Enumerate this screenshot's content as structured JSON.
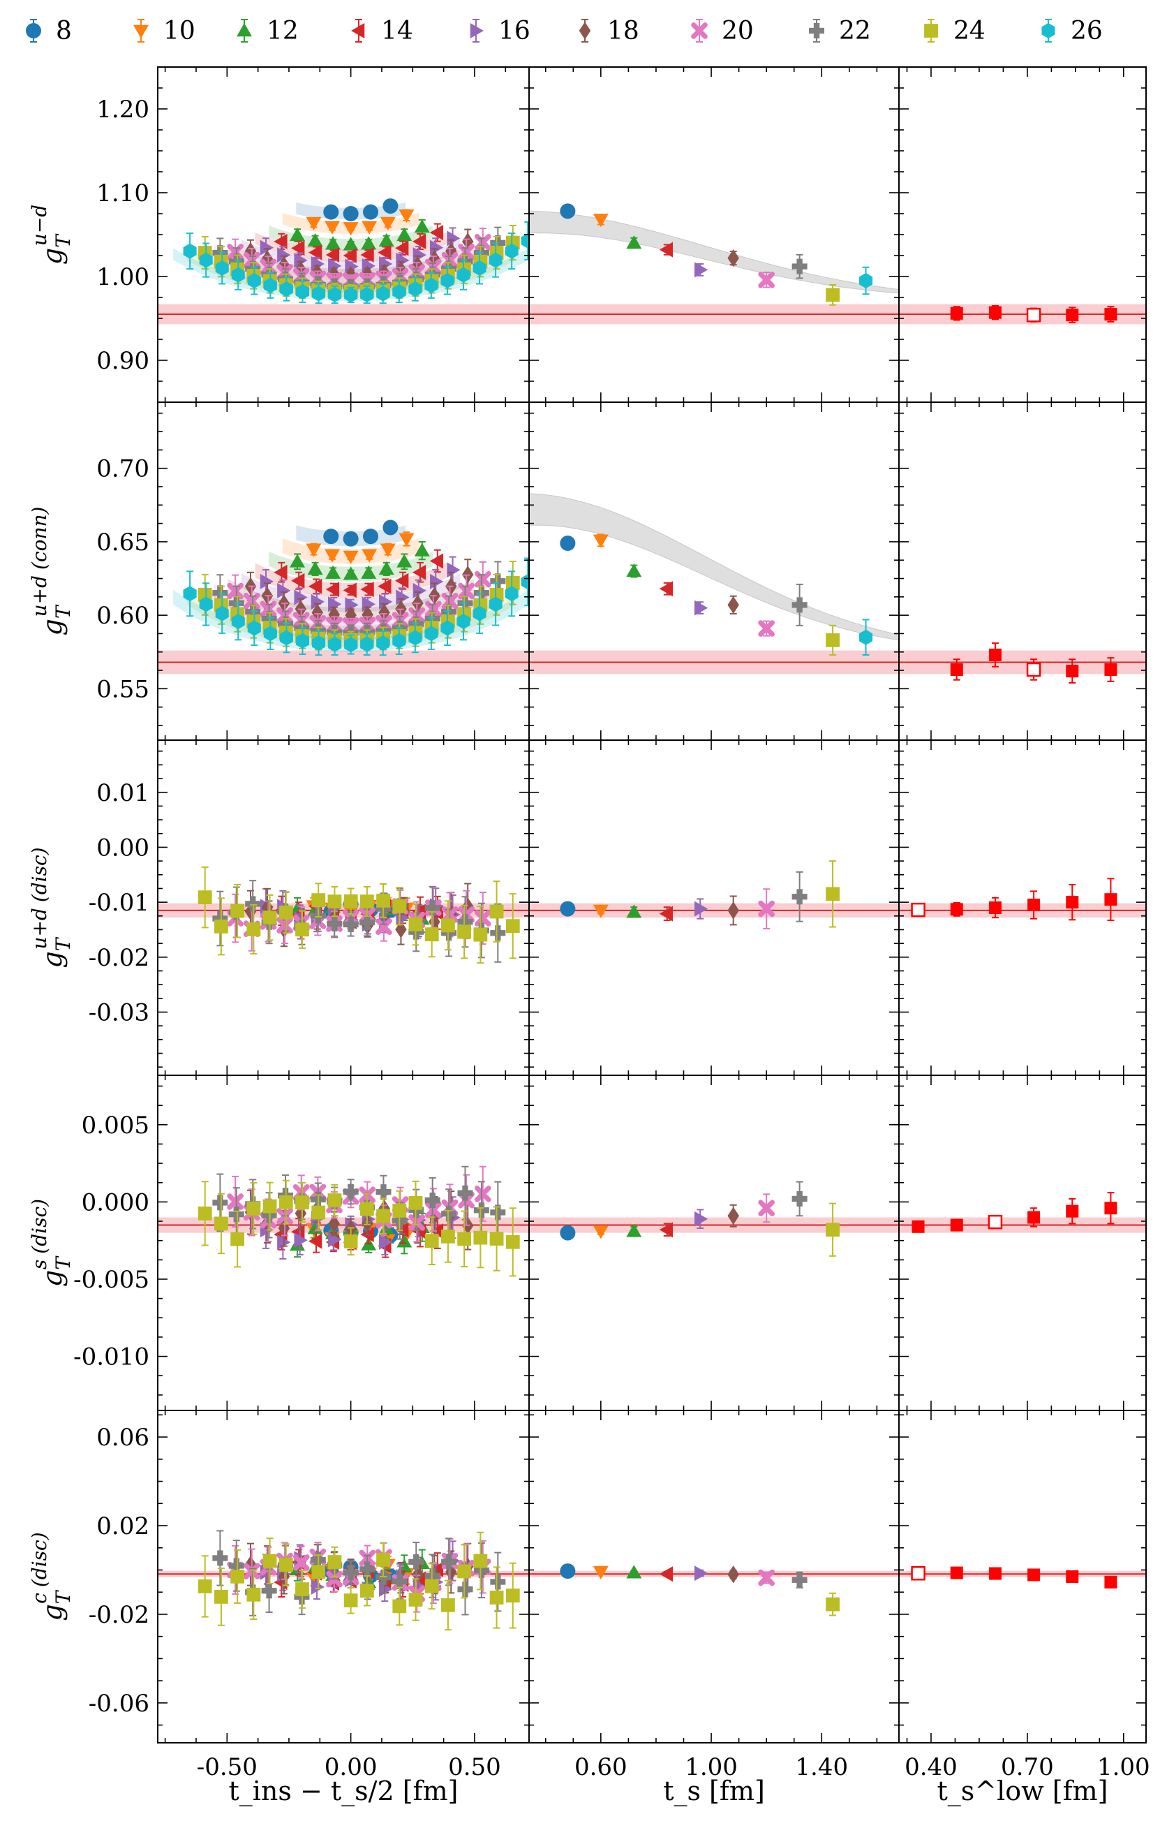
{
  "legend": [
    {
      "label": "8",
      "color": "#1f77b4",
      "marker": "circle"
    },
    {
      "label": "10",
      "color": "#ff7f0e",
      "marker": "tri-down"
    },
    {
      "label": "12",
      "color": "#2ca02c",
      "marker": "tri-up"
    },
    {
      "label": "14",
      "color": "#d62728",
      "marker": "tri-left"
    },
    {
      "label": "16",
      "color": "#9467bd",
      "marker": "tri-right"
    },
    {
      "label": "18",
      "color": "#8c564b",
      "marker": "diamond"
    },
    {
      "label": "20",
      "color": "#e377c2",
      "marker": "x"
    },
    {
      "label": "22",
      "color": "#7f7f7f",
      "marker": "plus"
    },
    {
      "label": "24",
      "color": "#bcbd22",
      "marker": "square"
    },
    {
      "label": "26",
      "color": "#17becf",
      "marker": "hexagon"
    }
  ],
  "colors": {
    "band": "#f8b9bd",
    "band_line": "#d62728",
    "fit_gray": "#d8d8d8",
    "extrap": "#ff0000"
  },
  "chart_data": {
    "type": "scatter",
    "columns": [
      {
        "xlabel": "t_ins − t_s/2 [fm]",
        "xlim": [
          -0.78,
          0.72
        ],
        "ticks": [
          -0.5,
          0.0,
          0.5
        ],
        "tick_labels": [
          "-0.50",
          "0.00",
          "0.50"
        ]
      },
      {
        "xlabel": "t_s [fm]",
        "xlim": [
          0.34,
          1.68
        ],
        "ticks": [
          0.6,
          1.0,
          1.4
        ],
        "tick_labels": [
          "0.60",
          "1.00",
          "1.40"
        ]
      },
      {
        "xlabel": "t_s^low [fm]",
        "xlim": [
          0.3,
          1.07
        ],
        "ticks": [
          0.4,
          0.7,
          1.0
        ],
        "tick_labels": [
          "0.40",
          "0.70",
          "1.00"
        ]
      }
    ],
    "ts_values": [
      0.48,
      0.6,
      0.72,
      0.84,
      0.96,
      1.08,
      1.2,
      1.32,
      1.44,
      1.56
    ],
    "rows": [
      {
        "ylabel_main": "g",
        "ylabel_sub": "T",
        "ylabel_sup": "u−d",
        "ylabel_tag": "",
        "ylim": [
          0.85,
          1.25
        ],
        "yticks": [
          0.9,
          1.0,
          1.1,
          1.2
        ],
        "ytick_labels": [
          "0.90",
          "1.00",
          "1.10",
          "1.20"
        ],
        "band": {
          "center": 0.955,
          "err": 0.012
        },
        "ratio": {
          "depth": [
            1.075,
            1.058,
            1.038,
            1.025,
            1.012,
            1.002,
            0.995,
            0.988,
            0.982,
            0.978
          ],
          "rise": 0.068,
          "err": 0.014
        },
        "ts_points": [
          1.078,
          1.068,
          1.04,
          1.032,
          1.008,
          1.022,
          0.996,
          1.012,
          0.978,
          0.995
        ],
        "ts_err": [
          0.006,
          0.006,
          0.006,
          0.006,
          0.007,
          0.008,
          0.009,
          0.014,
          0.012,
          0.016
        ],
        "fit_curve": {
          "start": 1.065,
          "end": 0.972,
          "halfwidth": 0.011
        },
        "tlow_x": [
          0.48,
          0.6,
          0.72,
          0.84,
          0.96
        ],
        "tlow_y": [
          0.956,
          0.957,
          0.954,
          0.954,
          0.955
        ],
        "tlow_err": [
          0.008,
          0.008,
          0.008,
          0.009,
          0.009
        ],
        "tlow_open": 2
      },
      {
        "ylabel_main": "g",
        "ylabel_sub": "T",
        "ylabel_sup": "u+d",
        "ylabel_tag": "(conn)",
        "ylim": [
          0.515,
          0.745
        ],
        "yticks": [
          0.55,
          0.6,
          0.65,
          0.7
        ],
        "ytick_labels": [
          "0.55",
          "0.60",
          "0.65",
          "0.70"
        ],
        "band": {
          "center": 0.568,
          "err": 0.008
        },
        "ratio": {
          "depth": [
            0.652,
            0.64,
            0.628,
            0.617,
            0.607,
            0.6,
            0.593,
            0.588,
            0.583,
            0.58
          ],
          "rise": 0.045,
          "err": 0.01
        },
        "ts_points": [
          0.649,
          0.651,
          0.63,
          0.618,
          0.605,
          0.607,
          0.591,
          0.607,
          0.583,
          0.585
        ],
        "ts_err": [
          0.004,
          0.004,
          0.004,
          0.004,
          0.004,
          0.006,
          0.005,
          0.014,
          0.01,
          0.012
        ],
        "fit_curve": {
          "start": 0.672,
          "end": 0.574,
          "halfwidth": 0.009
        },
        "tlow_x": [
          0.48,
          0.6,
          0.72,
          0.84,
          0.96
        ],
        "tlow_y": [
          0.563,
          0.573,
          0.563,
          0.562,
          0.563
        ],
        "tlow_err": [
          0.007,
          0.008,
          0.007,
          0.008,
          0.008
        ],
        "tlow_open": 2
      },
      {
        "ylabel_main": "g",
        "ylabel_sub": "T",
        "ylabel_sup": "u+d",
        "ylabel_tag": "(disc)",
        "ylim": [
          -0.0415,
          0.0195
        ],
        "yticks": [
          -0.03,
          -0.02,
          -0.01,
          0.0,
          0.01
        ],
        "ytick_labels": [
          "-0.03",
          "-0.02",
          "-0.01",
          "0.00",
          "0.01"
        ],
        "band": {
          "center": -0.0115,
          "err": 0.0013
        },
        "ratio": {
          "depth": [
            -0.011,
            -0.0112,
            -0.0118,
            -0.0122,
            -0.0125,
            -0.0128,
            -0.013,
            -0.013,
            -0.0125,
            null
          ],
          "rise": 0.0,
          "err": 0.004,
          "noise": 0.006
        },
        "ts_points": [
          -0.0112,
          -0.0115,
          -0.0118,
          -0.0121,
          -0.0112,
          -0.0115,
          -0.0112,
          -0.009,
          -0.0085,
          null
        ],
        "ts_err": [
          0.0004,
          0.0006,
          0.0009,
          0.0012,
          0.0018,
          0.0026,
          0.0036,
          0.0045,
          0.006,
          0
        ],
        "fit_curve": null,
        "tlow_x": [
          0.36,
          0.48,
          0.6,
          0.72,
          0.84,
          0.96
        ],
        "tlow_y": [
          -0.0114,
          -0.0113,
          -0.011,
          -0.0105,
          -0.01,
          -0.0095
        ],
        "tlow_err": [
          0.0008,
          0.0012,
          0.0018,
          0.0025,
          0.0032,
          0.0038
        ],
        "tlow_open": 0
      },
      {
        "ylabel_main": "g",
        "ylabel_sub": "T",
        "ylabel_sup": "s",
        "ylabel_tag": "(disc)",
        "ylim": [
          -0.0135,
          0.0082
        ],
        "yticks": [
          -0.01,
          -0.005,
          0.0,
          0.005
        ],
        "ytick_labels": [
          "-0.010",
          "-0.005",
          "0.000",
          "0.005"
        ],
        "band": {
          "center": -0.0015,
          "err": 0.0005
        },
        "ratio": {
          "depth": [
            -0.002,
            -0.0021,
            -0.0022,
            -0.0022,
            -0.0018,
            -0.0012,
            -0.0005,
            0.0,
            -0.0012,
            null
          ],
          "rise": 0.0,
          "err": 0.0015,
          "noise": 0.0025
        },
        "ts_points": [
          -0.002,
          -0.0019,
          -0.0019,
          -0.0018,
          -0.0011,
          -0.0009,
          -0.0004,
          0.0002,
          -0.0018,
          null
        ],
        "ts_err": [
          0.0002,
          0.0002,
          0.0003,
          0.0004,
          0.0006,
          0.0007,
          0.0009,
          0.0011,
          0.0017,
          0
        ],
        "fit_curve": null,
        "tlow_x": [
          0.36,
          0.48,
          0.6,
          0.72,
          0.84,
          0.96
        ],
        "tlow_y": [
          -0.0016,
          -0.0015,
          -0.0013,
          -0.001,
          -0.0006,
          -0.0004
        ],
        "tlow_err": [
          0.0003,
          0.0003,
          0.0004,
          0.0006,
          0.0008,
          0.001
        ],
        "tlow_open": 2
      },
      {
        "ylabel_main": "g",
        "ylabel_sub": "T",
        "ylabel_sup": "c",
        "ylabel_tag": "(disc)",
        "ylim": [
          -0.078,
          0.072
        ],
        "yticks": [
          -0.06,
          -0.02,
          0.02,
          0.06
        ],
        "ytick_labels": [
          "-0.06",
          "-0.02",
          "0.02",
          "0.06"
        ],
        "band": {
          "center": -0.0018,
          "err": 0.0014
        },
        "ratio": {
          "depth": [
            -0.001,
            -0.0012,
            -0.0014,
            -0.0015,
            -0.0018,
            -0.002,
            -0.003,
            -0.004,
            -0.005,
            null
          ],
          "rise": 0.0,
          "err": 0.01,
          "noise": 0.02
        },
        "ts_points": [
          -0.0005,
          -0.0008,
          -0.0012,
          -0.0018,
          -0.0015,
          -0.002,
          -0.0035,
          -0.0045,
          -0.0155,
          null
        ],
        "ts_err": [
          0.0005,
          0.0006,
          0.0008,
          0.001,
          0.0014,
          0.0018,
          0.0025,
          0.0035,
          0.005,
          0
        ],
        "fit_curve": null,
        "tlow_x": [
          0.36,
          0.48,
          0.6,
          0.72,
          0.84,
          0.96
        ],
        "tlow_y": [
          -0.0015,
          -0.0013,
          -0.0016,
          -0.0022,
          -0.003,
          -0.0055
        ],
        "tlow_err": [
          0.0008,
          0.001,
          0.0013,
          0.0016,
          0.002,
          0.0025
        ],
        "tlow_open": 0
      }
    ]
  }
}
